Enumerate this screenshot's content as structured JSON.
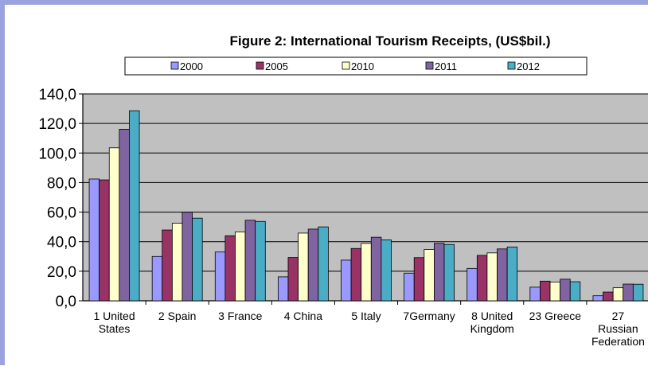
{
  "chart_data": {
    "type": "bar",
    "title": "Figure 2: International Tourism Receipts, (US$bil.)",
    "xlabel": "",
    "ylabel": "",
    "ylim": [
      0,
      140
    ],
    "yticks": [
      "0,0",
      "20,0",
      "40,0",
      "60,0",
      "80,0",
      "100,0",
      "120,0",
      "140,0"
    ],
    "grid": true,
    "legend_position": "top",
    "categories": [
      [
        "1 United",
        "States"
      ],
      [
        "2 Spain"
      ],
      [
        "3 France"
      ],
      [
        "4 China"
      ],
      [
        "5 Italy"
      ],
      [
        "7Germany"
      ],
      [
        "8 United",
        "Kingdom"
      ],
      [
        "23 Greece"
      ],
      [
        "27",
        "Russian",
        "Federation"
      ]
    ],
    "series": [
      {
        "name": "2000",
        "color": "#9999ff",
        "values": [
          82.4,
          30.0,
          33.0,
          16.2,
          27.5,
          18.7,
          21.9,
          9.2,
          3.4
        ]
      },
      {
        "name": "2005",
        "color": "#993366",
        "values": [
          81.8,
          47.9,
          44.0,
          29.3,
          35.4,
          29.2,
          30.7,
          13.3,
          5.9
        ]
      },
      {
        "name": "2010",
        "color": "#ffffcc",
        "values": [
          103.5,
          52.5,
          46.6,
          45.8,
          38.8,
          34.7,
          32.4,
          12.7,
          8.8
        ]
      },
      {
        "name": "2011",
        "color": "#8064a2",
        "values": [
          116.1,
          59.9,
          54.5,
          48.5,
          43.0,
          38.9,
          35.1,
          14.6,
          11.3
        ]
      },
      {
        "name": "2012",
        "color": "#4bacc6",
        "values": [
          128.6,
          55.9,
          53.7,
          50.0,
          41.2,
          38.1,
          36.4,
          12.9,
          11.2
        ]
      }
    ],
    "plot_background": "#c0c0c0"
  }
}
